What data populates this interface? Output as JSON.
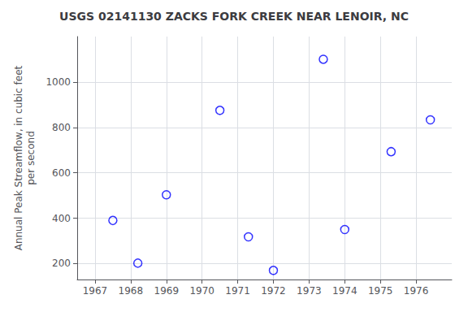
{
  "chart_data": {
    "type": "scatter",
    "title": "USGS 02141130 ZACKS FORK CREEK NEAR LENOIR, NC",
    "ylabel": "Annual Peak Streamflow, in cubic feet\nper second",
    "x": [
      1967.5,
      1968.2,
      1969.0,
      1970.5,
      1971.3,
      1972.0,
      1973.4,
      1974.0,
      1975.3,
      1976.4
    ],
    "values": [
      390,
      202,
      503,
      875,
      318,
      170,
      1100,
      350,
      693,
      833
    ],
    "color": "blue",
    "marker": "circle",
    "xlim": [
      1966.5,
      1977.0
    ],
    "xticks": [
      1967,
      1968,
      1969,
      1970,
      1971,
      1972,
      1973,
      1974,
      1975,
      1976
    ],
    "ylim": [
      130,
      1200
    ],
    "yticks": [
      200,
      400,
      600,
      800,
      1000
    ],
    "grid": true
  }
}
